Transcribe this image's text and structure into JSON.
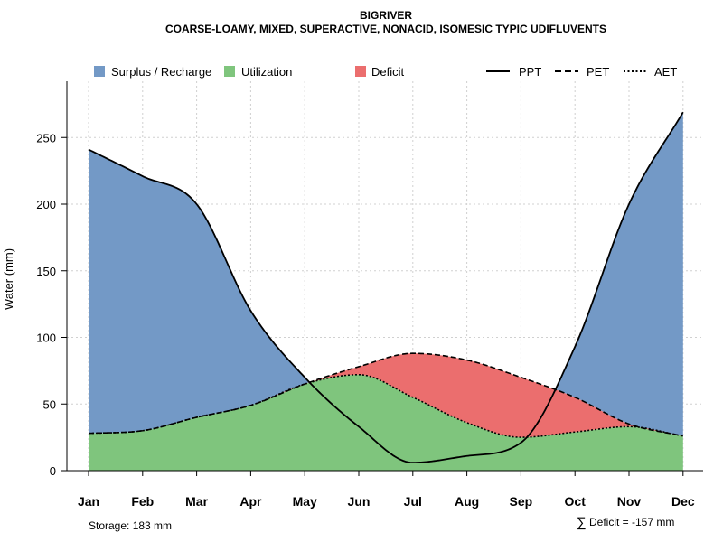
{
  "chart_data": {
    "type": "area",
    "title": "BIGRIVER",
    "subtitle": "COARSE-LOAMY, MIXED, SUPERACTIVE, NONACID, ISOMESIC TYPIC UDIFLUVENTS",
    "xlabel": "",
    "ylabel": "Water (mm)",
    "ylim": [
      0,
      280
    ],
    "yticks": [
      0,
      50,
      100,
      150,
      200,
      250
    ],
    "grid": true,
    "categories": [
      "Jan",
      "Feb",
      "Mar",
      "Apr",
      "May",
      "Jun",
      "Jul",
      "Aug",
      "Sep",
      "Oct",
      "Nov",
      "Dec"
    ],
    "series": [
      {
        "name": "PPT",
        "style": "solid",
        "values": [
          241,
          221,
          200,
          120,
          70,
          33,
          6,
          11,
          21,
          93,
          200,
          269
        ]
      },
      {
        "name": "PET",
        "style": "dashed",
        "values": [
          28,
          30,
          40,
          49,
          65,
          78,
          88,
          83,
          70,
          55,
          35,
          26
        ]
      },
      {
        "name": "AET",
        "style": "dotted",
        "values": [
          28,
          30,
          40,
          49,
          65,
          72,
          55,
          36,
          25,
          29,
          33,
          26
        ]
      }
    ],
    "areas": [
      {
        "name": "Surplus / Recharge",
        "color": "#7399c6"
      },
      {
        "name": "Utilization",
        "color": "#7fc57d"
      },
      {
        "name": "Deficit",
        "color": "#eb6e6e"
      }
    ],
    "legend_position": "top",
    "annotations": {
      "storage": "Storage: 183 mm",
      "deficit_symbol": "∑",
      "deficit": "Deficit = -157 mm"
    }
  }
}
